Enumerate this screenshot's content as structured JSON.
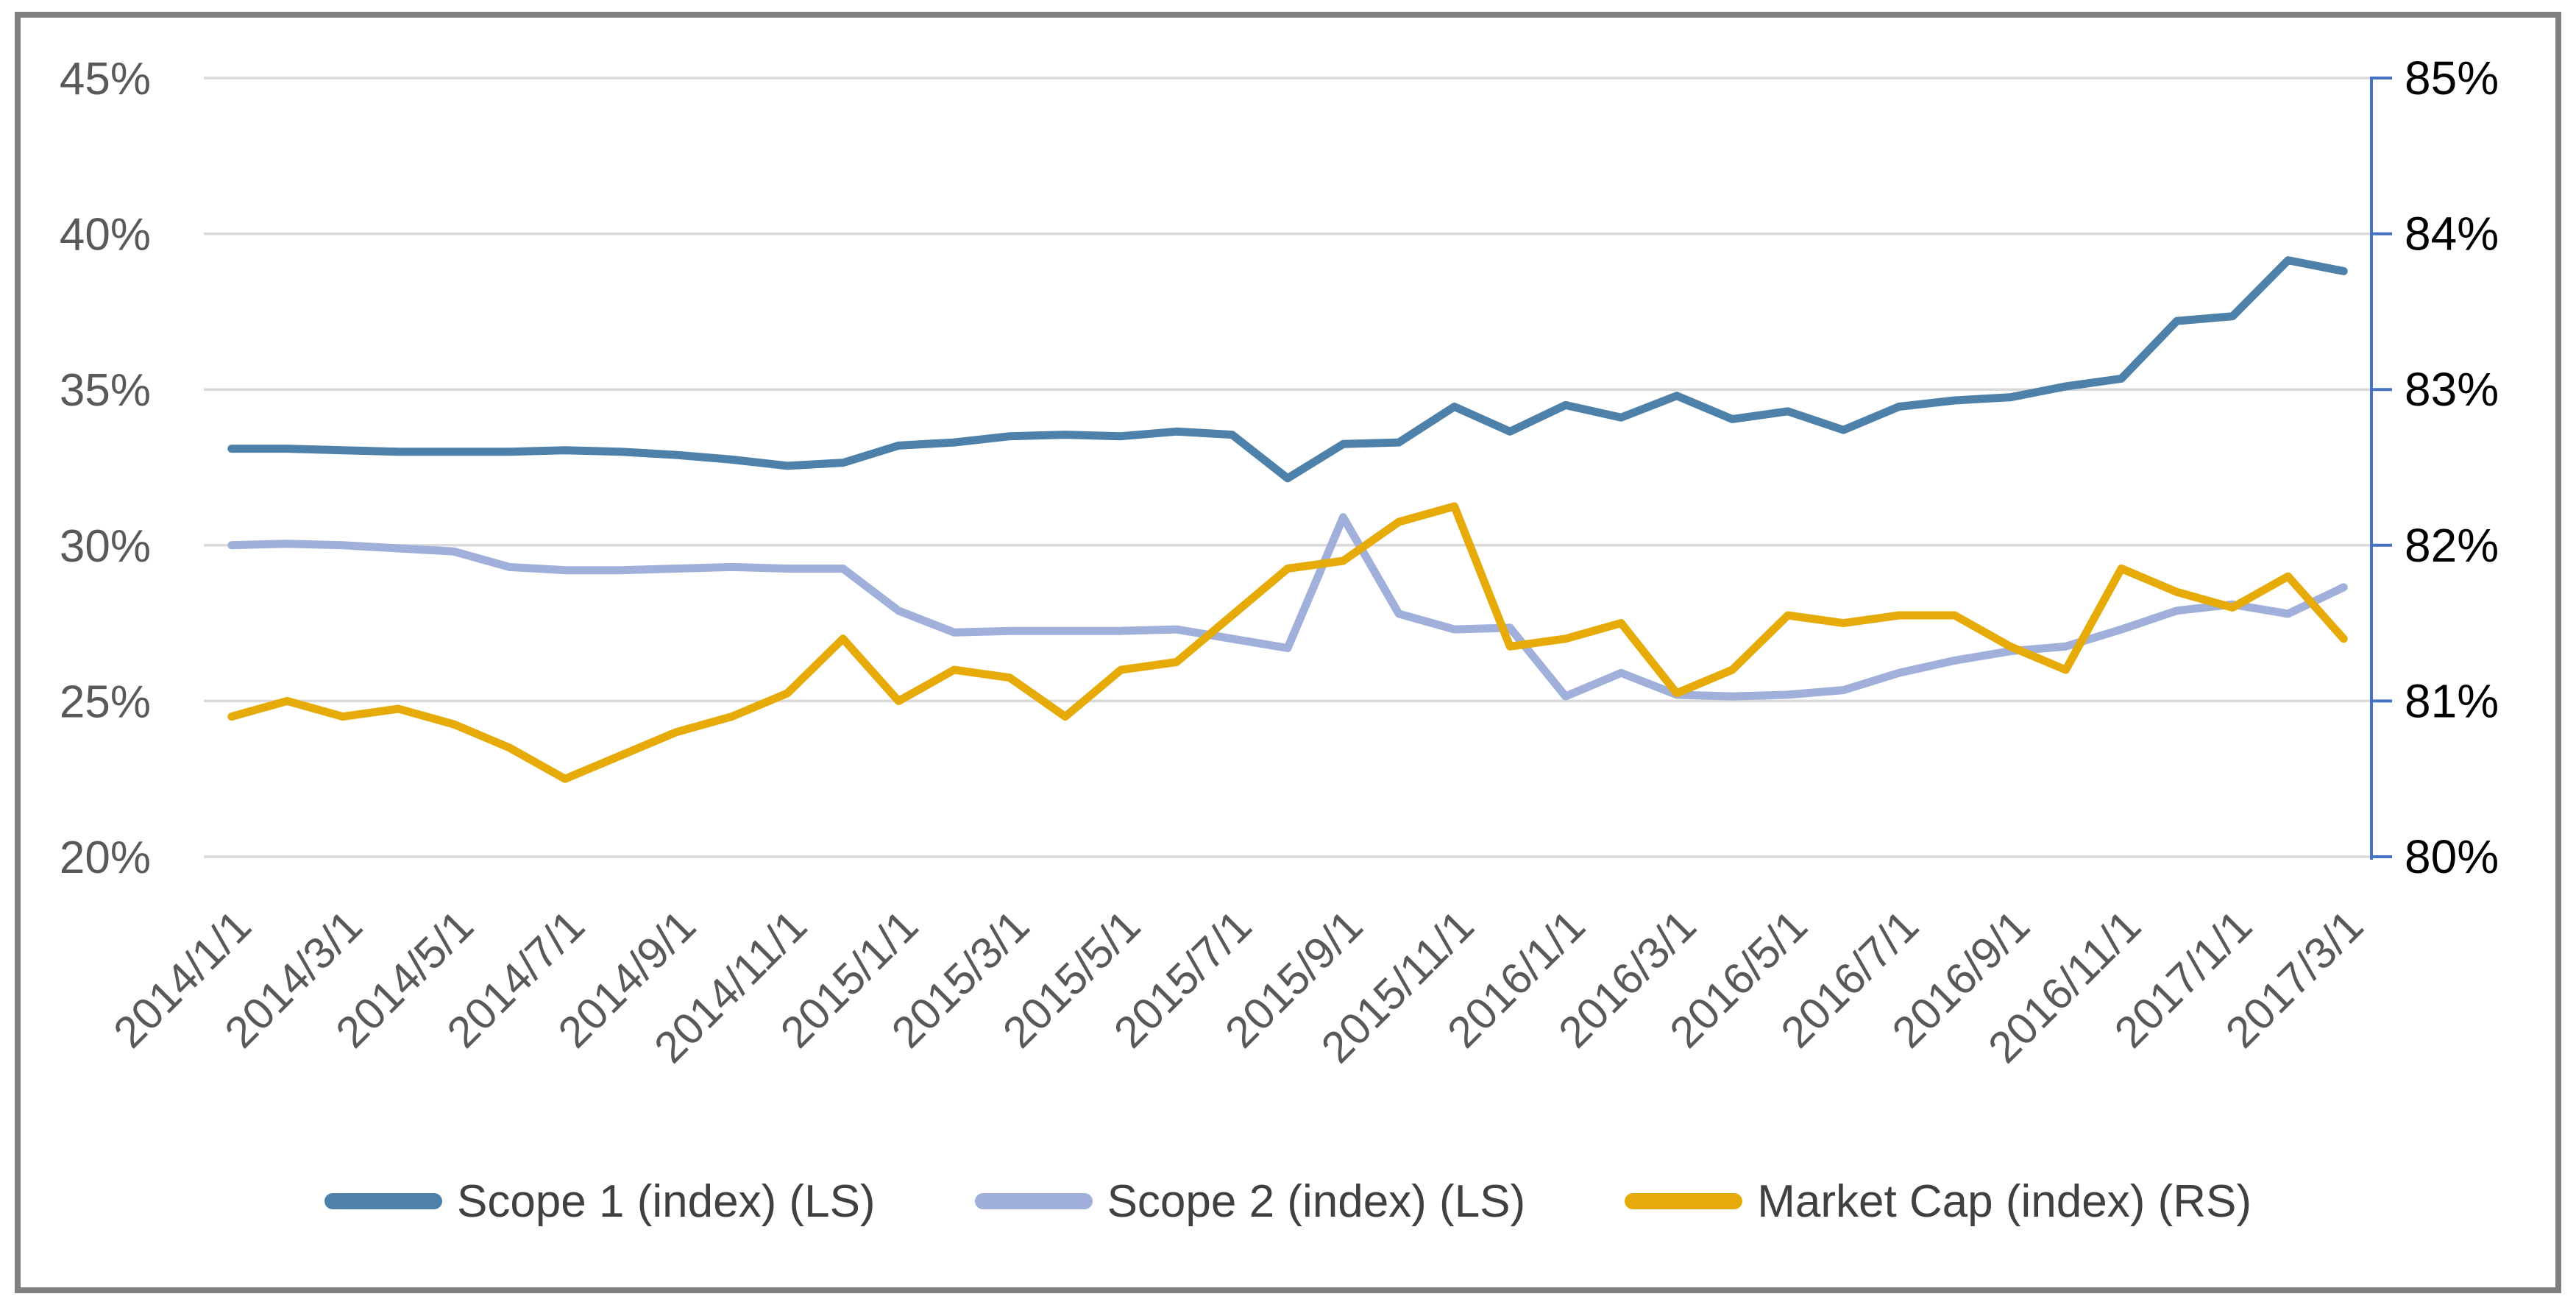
{
  "frame": {
    "border_color": "#808080",
    "background": "#FFFFFF"
  },
  "chart_data": {
    "type": "line",
    "title": "",
    "grid": true,
    "gridline_color": "#D9D9D9",
    "legend_position": "bottom",
    "x_categories": [
      "2014/1/1",
      "2014/2/1",
      "2014/3/1",
      "2014/4/1",
      "2014/5/1",
      "2014/6/1",
      "2014/7/1",
      "2014/8/1",
      "2014/9/1",
      "2014/10/1",
      "2014/11/1",
      "2014/12/1",
      "2015/1/1",
      "2015/2/1",
      "2015/3/1",
      "2015/4/1",
      "2015/5/1",
      "2015/6/1",
      "2015/7/1",
      "2015/8/1",
      "2015/9/1",
      "2015/10/1",
      "2015/11/1",
      "2015/12/1",
      "2016/1/1",
      "2016/2/1",
      "2016/3/1",
      "2016/4/1",
      "2016/5/1",
      "2016/6/1",
      "2016/7/1",
      "2016/8/1",
      "2016/9/1",
      "2016/10/1",
      "2016/11/1",
      "2016/12/1",
      "2017/1/1",
      "2017/2/1",
      "2017/3/1"
    ],
    "x_tick_label_every": 2,
    "x_tick_labels": [
      "2014/1/1",
      "2014/3/1",
      "2014/5/1",
      "2014/7/1",
      "2014/9/1",
      "2014/11/1",
      "2015/1/1",
      "2015/3/1",
      "2015/5/1",
      "2015/7/1",
      "2015/9/1",
      "2015/11/1",
      "2016/1/1",
      "2016/3/1",
      "2016/5/1",
      "2016/7/1",
      "2016/9/1",
      "2016/11/1",
      "2017/1/1",
      "2017/3/1"
    ],
    "x_tick_label_color": "#595959",
    "left_axis": {
      "min": 20,
      "max": 45,
      "ticks": [
        "45%",
        "40%",
        "35%",
        "30%",
        "25%",
        "20%"
      ],
      "tick_values": [
        45,
        40,
        35,
        30,
        25,
        20
      ],
      "label_color": "#595959"
    },
    "right_axis": {
      "min": 80,
      "max": 85,
      "ticks": [
        "85%",
        "84%",
        "83%",
        "82%",
        "81%",
        "80%"
      ],
      "tick_values": [
        85,
        84,
        83,
        82,
        81,
        80
      ],
      "label_color": "#000000",
      "axis_line_color": "#4472C4"
    },
    "series": [
      {
        "name": "Scope 1 (index) (LS)",
        "axis": "left",
        "color": "#4E81A9",
        "values": [
          33.1,
          33.1,
          33.05,
          33.0,
          33.0,
          33.0,
          33.05,
          33.0,
          32.9,
          32.75,
          32.55,
          32.65,
          33.2,
          33.3,
          33.5,
          33.55,
          33.5,
          33.65,
          33.55,
          32.15,
          33.25,
          33.3,
          34.45,
          33.65,
          34.5,
          34.1,
          34.8,
          34.05,
          34.3,
          33.7,
          34.45,
          34.65,
          34.75,
          35.1,
          35.35,
          37.2,
          37.35,
          39.15,
          38.8
        ]
      },
      {
        "name": "Scope 2 (index) (LS)",
        "axis": "left",
        "color": "#A0B0DA",
        "values": [
          30.0,
          30.05,
          30.0,
          29.9,
          29.8,
          29.3,
          29.2,
          29.2,
          29.25,
          29.3,
          29.25,
          29.25,
          27.9,
          27.2,
          27.25,
          27.25,
          27.25,
          27.3,
          27.0,
          26.7,
          30.9,
          27.8,
          27.3,
          27.35,
          25.15,
          25.9,
          25.2,
          25.15,
          25.2,
          25.35,
          25.9,
          26.3,
          26.6,
          26.75,
          27.3,
          27.9,
          28.1,
          27.8,
          28.65
        ]
      },
      {
        "name": "Market Cap (index) (RS)",
        "axis": "right",
        "color": "#E6AB08",
        "values": [
          80.9,
          81.0,
          80.9,
          80.95,
          80.85,
          80.7,
          80.5,
          80.65,
          80.8,
          80.9,
          81.05,
          81.4,
          81.0,
          81.2,
          81.15,
          80.9,
          81.2,
          81.25,
          81.55,
          81.85,
          81.9,
          82.15,
          82.25,
          81.35,
          81.4,
          81.5,
          81.05,
          81.2,
          81.55,
          81.5,
          81.55,
          81.55,
          81.35,
          81.2,
          81.85,
          81.7,
          81.6,
          81.8,
          81.4
        ]
      }
    ]
  },
  "legend": {
    "items": [
      {
        "label": "Scope 1 (index) (LS)",
        "color": "#4E81A9"
      },
      {
        "label": "Scope 2 (index) (LS)",
        "color": "#A0B0DA"
      },
      {
        "label": "Market Cap (index) (RS)",
        "color": "#E6AB08"
      }
    ]
  }
}
